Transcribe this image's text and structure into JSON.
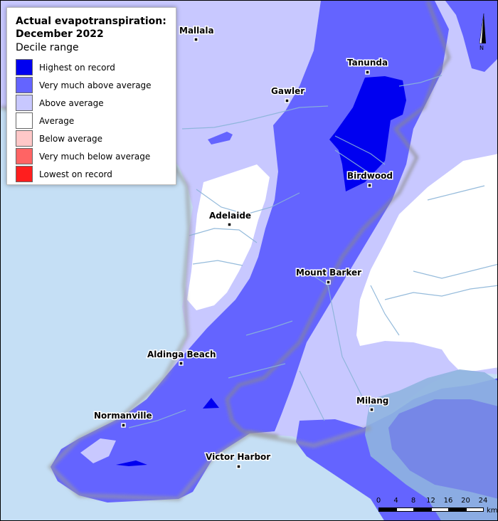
{
  "legend": {
    "title": "Actual evapotranspiration:\nDecember 2022",
    "subtitle": "Decile range",
    "items": [
      {
        "label": "Highest on record",
        "color": "#0000f0"
      },
      {
        "label": "Very much above average",
        "color": "#6464ff"
      },
      {
        "label": "Above average",
        "color": "#c8c8ff"
      },
      {
        "label": "Average",
        "color": "#ffffff"
      },
      {
        "label": "Below average",
        "color": "#ffc8c8"
      },
      {
        "label": "Very much below average",
        "color": "#ff6464"
      },
      {
        "label": "Lowest on record",
        "color": "#ff1e1e"
      }
    ]
  },
  "towns": [
    "Mallala",
    "Tanunda",
    "Gawler",
    "Birdwood",
    "Adelaide",
    "Mount Barker",
    "Aldinga Beach",
    "Milang",
    "Normanville",
    "Victor Harbor"
  ],
  "scale": {
    "ticks": [
      "0",
      "4",
      "8",
      "12",
      "16",
      "20",
      "24"
    ],
    "unit": "km"
  },
  "north_label": "N",
  "colors": {
    "sea": "#c5dff5",
    "lake": "#8fb4e0",
    "rivers": "#8ab4d8",
    "coast_shadow": "#9a9a9a"
  }
}
